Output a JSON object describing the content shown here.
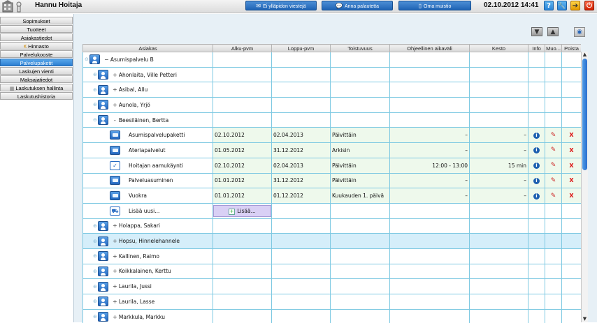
{
  "header": {
    "user_name": "Hannu Hoitaja",
    "btn_messages": "Ei ylläpidon viestejä",
    "btn_feedback": "Anna palautetta",
    "btn_notes": "Oma muistio",
    "datetime": "02.10.2012 14:41"
  },
  "sidebar": {
    "items": [
      {
        "label": "Sopimukset"
      },
      {
        "label": "Tuotteet"
      },
      {
        "label": "Asiakastiedot"
      },
      {
        "label": "Hinnasto"
      },
      {
        "label": "Palvelukooste"
      },
      {
        "label": "Palvelupaketit"
      },
      {
        "label": "Laskujen vienti"
      },
      {
        "label": "Maksajatiedot"
      },
      {
        "label": "Laskutuksen hallinta"
      },
      {
        "label": "Laskutushistoria"
      }
    ]
  },
  "table": {
    "columns": [
      "Asiakas",
      "Alku-pvm",
      "Loppu-pvm",
      "Toistuvuus",
      "Ohjeellinen aikaväli",
      "Kesto",
      "Info",
      "Muo...",
      "Poista"
    ],
    "group_label": "Asumispalvelu B",
    "customers": [
      {
        "name": "Ahonlaita, Ville Petteri",
        "exp": "+"
      },
      {
        "name": "Asibal, Allu",
        "exp": "+"
      },
      {
        "name": "Aunola, Yrjö",
        "exp": "+"
      },
      {
        "name": "Beesiläinen, Bertta",
        "exp": "-"
      }
    ],
    "packages": [
      {
        "name": "Asumispalvelupaketti",
        "start": "02.10.2012",
        "end": "02.04.2013",
        "freq": "Päivittäin",
        "interval": "–",
        "dur": "–"
      },
      {
        "name": "Ateriapalvelut",
        "start": "01.05.2012",
        "end": "31.12.2012",
        "freq": "Arkisin",
        "interval": "–",
        "dur": "–"
      },
      {
        "name": "Hoitajan aamukäynti",
        "start": "02.10.2012",
        "end": "02.04.2013",
        "freq": "Päivittäin",
        "interval": "12:00 - 13:00",
        "dur": "15 min"
      },
      {
        "name": "Palveluasuminen",
        "start": "01.01.2012",
        "end": "31.12.2012",
        "freq": "Päivittäin",
        "interval": "–",
        "dur": "–"
      },
      {
        "name": "Vuokra",
        "start": "01.01.2012",
        "end": "01.12.2012",
        "freq": "Kuukauden 1. päivä",
        "interval": "–",
        "dur": "–"
      }
    ],
    "add_new_label": "Lisää uusi...",
    "add_button_label": "Lisää...",
    "more_customers": [
      {
        "name": "Holappa, Sakari",
        "exp": "+"
      },
      {
        "name": "Hopsu, Hinnelehannele",
        "exp": "+"
      },
      {
        "name": "Kallinen, Raimo",
        "exp": "+"
      },
      {
        "name": "Koikkalainen, Kerttu",
        "exp": "+"
      },
      {
        "name": "Laurila, Jussi",
        "exp": "+"
      },
      {
        "name": "Laurila, Lasse",
        "exp": "+"
      },
      {
        "name": "Markkula, Markku",
        "exp": "+"
      }
    ]
  }
}
